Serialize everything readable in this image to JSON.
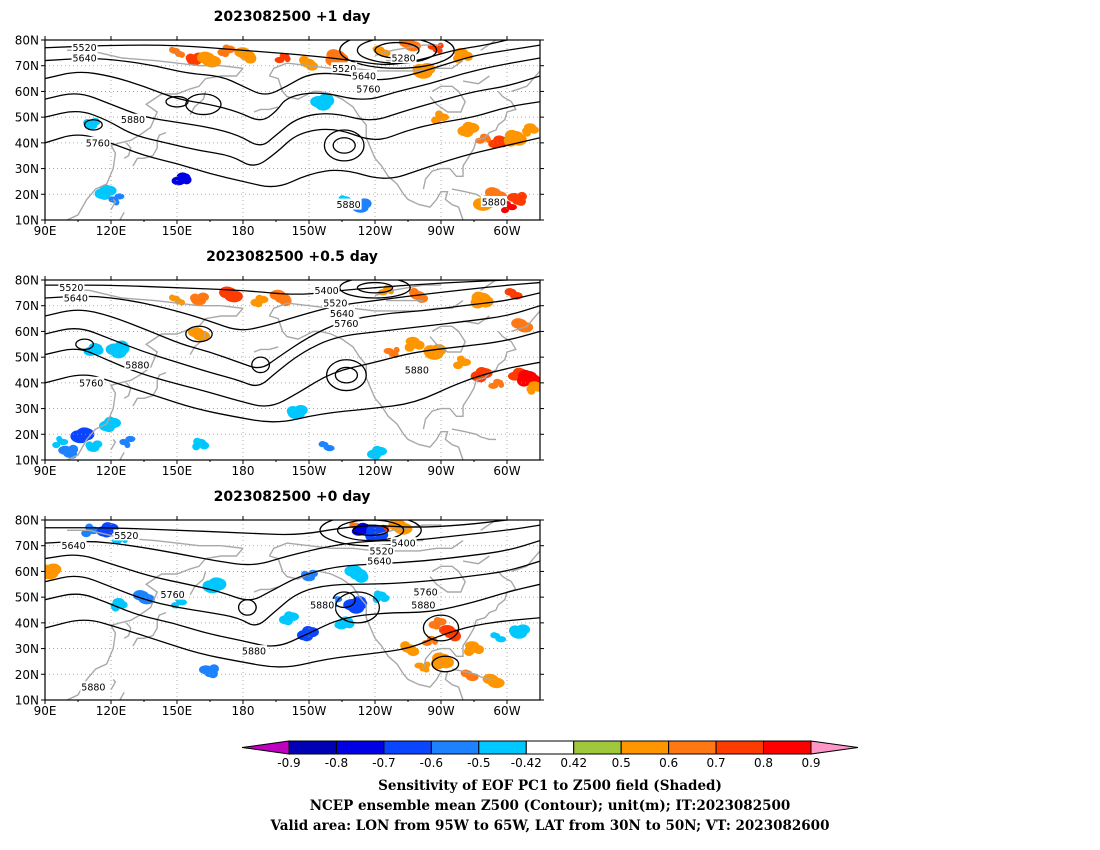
{
  "panels": [
    {
      "id": "p1",
      "title": "2023082500  +1 day",
      "contour_labels": [
        "5520",
        "5640",
        "5520",
        "5640",
        "5760",
        "5280",
        "5880",
        "5760",
        "5880",
        "5880"
      ],
      "shading": [
        {
          "lon": 150,
          "lat": 75,
          "v": 0.6
        },
        {
          "lon": 158,
          "lat": 73,
          "v": 0.7
        },
        {
          "lon": 165,
          "lat": 72,
          "v": 0.5
        },
        {
          "lon": 172,
          "lat": 76,
          "v": 0.6
        },
        {
          "lon": 182,
          "lat": 74,
          "v": 0.5
        },
        {
          "lon": 198,
          "lat": 73,
          "v": 0.7
        },
        {
          "lon": 210,
          "lat": 71,
          "v": 0.5
        },
        {
          "lon": 222,
          "lat": 73,
          "v": 0.6
        },
        {
          "lon": 243,
          "lat": 76,
          "v": 0.5
        },
        {
          "lon": 255,
          "lat": 78,
          "v": 0.6
        },
        {
          "lon": 268,
          "lat": 77,
          "v": 0.7
        },
        {
          "lon": 280,
          "lat": 74,
          "v": 0.5
        },
        {
          "lon": 262,
          "lat": 68,
          "v": 0.5
        },
        {
          "lon": 270,
          "lat": 50,
          "v": 0.5
        },
        {
          "lon": 282,
          "lat": 45,
          "v": 0.5
        },
        {
          "lon": 290,
          "lat": 42,
          "v": 0.6
        },
        {
          "lon": 296,
          "lat": 40,
          "v": 0.7
        },
        {
          "lon": 304,
          "lat": 42,
          "v": 0.5
        },
        {
          "lon": 310,
          "lat": 45,
          "v": 0.5
        },
        {
          "lon": 295,
          "lat": 20,
          "v": 0.6
        },
        {
          "lon": 300,
          "lat": 15,
          "v": 0.8
        },
        {
          "lon": 305,
          "lat": 18,
          "v": 0.7
        },
        {
          "lon": 290,
          "lat": 17,
          "v": 0.5
        },
        {
          "lon": 111,
          "lat": 47,
          "v": -0.5
        },
        {
          "lon": 118,
          "lat": 21,
          "v": -0.5
        },
        {
          "lon": 122,
          "lat": 18,
          "v": -0.6
        },
        {
          "lon": 153,
          "lat": 26,
          "v": -0.8
        },
        {
          "lon": 216,
          "lat": 56,
          "v": -0.5
        },
        {
          "lon": 227,
          "lat": 17,
          "v": -0.5
        },
        {
          "lon": 233,
          "lat": 16,
          "v": -0.6
        }
      ]
    },
    {
      "id": "p2",
      "title": "2023082500  +0.5 day",
      "contour_labels": [
        "5520",
        "5640",
        "5400",
        "5520",
        "5640",
        "5760",
        "5880",
        "5760",
        "5880"
      ],
      "shading": [
        {
          "lon": 150,
          "lat": 72,
          "v": 0.5
        },
        {
          "lon": 160,
          "lat": 73,
          "v": 0.6
        },
        {
          "lon": 175,
          "lat": 74,
          "v": 0.7
        },
        {
          "lon": 187,
          "lat": 72,
          "v": 0.5
        },
        {
          "lon": 198,
          "lat": 73,
          "v": 0.6
        },
        {
          "lon": 245,
          "lat": 76,
          "v": 0.5
        },
        {
          "lon": 260,
          "lat": 74,
          "v": 0.6
        },
        {
          "lon": 288,
          "lat": 72,
          "v": 0.5
        },
        {
          "lon": 303,
          "lat": 75,
          "v": 0.7
        },
        {
          "lon": 306,
          "lat": 62,
          "v": 0.6
        },
        {
          "lon": 248,
          "lat": 52,
          "v": 0.6
        },
        {
          "lon": 258,
          "lat": 55,
          "v": 0.5
        },
        {
          "lon": 267,
          "lat": 52,
          "v": 0.5
        },
        {
          "lon": 280,
          "lat": 48,
          "v": 0.5
        },
        {
          "lon": 288,
          "lat": 43,
          "v": 0.7
        },
        {
          "lon": 296,
          "lat": 40,
          "v": 0.6
        },
        {
          "lon": 305,
          "lat": 43,
          "v": 0.7
        },
        {
          "lon": 310,
          "lat": 42,
          "v": 0.8
        },
        {
          "lon": 312,
          "lat": 38,
          "v": 0.5
        },
        {
          "lon": 160,
          "lat": 59,
          "v": 0.5
        },
        {
          "lon": 96,
          "lat": 17,
          "v": -0.5
        },
        {
          "lon": 101,
          "lat": 13,
          "v": -0.6
        },
        {
          "lon": 107,
          "lat": 20,
          "v": -0.7
        },
        {
          "lon": 112,
          "lat": 15,
          "v": -0.5
        },
        {
          "lon": 120,
          "lat": 24,
          "v": -0.5
        },
        {
          "lon": 127,
          "lat": 17,
          "v": -0.6
        },
        {
          "lon": 113,
          "lat": 53,
          "v": -0.5
        },
        {
          "lon": 123,
          "lat": 53,
          "v": -0.5
        },
        {
          "lon": 161,
          "lat": 16,
          "v": -0.5
        },
        {
          "lon": 204,
          "lat": 29,
          "v": -0.5
        },
        {
          "lon": 218,
          "lat": 15,
          "v": -0.6
        },
        {
          "lon": 240,
          "lat": 13,
          "v": -0.5
        }
      ]
    },
    {
      "id": "p3",
      "title": "2023082500  +0 day",
      "contour_labels": [
        "5520",
        "5640",
        "5640",
        "5520",
        "5400",
        "5760",
        "5880",
        "5760",
        "5880",
        "5880",
        "5880"
      ],
      "shading": [
        {
          "lon": 232,
          "lat": 77,
          "v": 0.6
        },
        {
          "lon": 242,
          "lat": 76,
          "v": 0.7
        },
        {
          "lon": 252,
          "lat": 77,
          "v": 0.5
        },
        {
          "lon": 268,
          "lat": 40,
          "v": 0.6
        },
        {
          "lon": 275,
          "lat": 36,
          "v": 0.7
        },
        {
          "lon": 265,
          "lat": 33,
          "v": 0.6
        },
        {
          "lon": 256,
          "lat": 30,
          "v": 0.5
        },
        {
          "lon": 270,
          "lat": 25,
          "v": 0.5
        },
        {
          "lon": 283,
          "lat": 20,
          "v": 0.6
        },
        {
          "lon": 293,
          "lat": 17,
          "v": 0.5
        },
        {
          "lon": 262,
          "lat": 23,
          "v": 0.5
        },
        {
          "lon": 285,
          "lat": 30,
          "v": 0.5
        },
        {
          "lon": 92,
          "lat": 60,
          "v": 0.5
        },
        {
          "lon": 111,
          "lat": 76,
          "v": -0.6
        },
        {
          "lon": 118,
          "lat": 76,
          "v": -0.7
        },
        {
          "lon": 125,
          "lat": 73,
          "v": -0.5
        },
        {
          "lon": 234,
          "lat": 76,
          "v": -0.8
        },
        {
          "lon": 241,
          "lat": 75,
          "v": -0.7
        },
        {
          "lon": 123,
          "lat": 47,
          "v": -0.5
        },
        {
          "lon": 135,
          "lat": 50,
          "v": -0.6
        },
        {
          "lon": 150,
          "lat": 48,
          "v": -0.5
        },
        {
          "lon": 165,
          "lat": 21,
          "v": -0.6
        },
        {
          "lon": 167,
          "lat": 55,
          "v": -0.5
        },
        {
          "lon": 210,
          "lat": 58,
          "v": -0.6
        },
        {
          "lon": 210,
          "lat": 36,
          "v": -0.7
        },
        {
          "lon": 221,
          "lat": 48,
          "v": -0.6
        },
        {
          "lon": 227,
          "lat": 40,
          "v": -0.5
        },
        {
          "lon": 231,
          "lat": 47,
          "v": -0.7
        },
        {
          "lon": 243,
          "lat": 50,
          "v": -0.5
        },
        {
          "lon": 305,
          "lat": 37,
          "v": -0.5
        },
        {
          "lon": 296,
          "lat": 34,
          "v": -0.5
        },
        {
          "lon": 200,
          "lat": 42,
          "v": -0.5
        },
        {
          "lon": 232,
          "lat": 59,
          "v": -0.5
        }
      ]
    }
  ],
  "axes": {
    "lon_labels": [
      "90E",
      "120E",
      "150E",
      "180",
      "150W",
      "120W",
      "90W",
      "60W"
    ],
    "lat_labels": [
      "80N",
      "70N",
      "60N",
      "50N",
      "40N",
      "30N",
      "20N",
      "10N"
    ]
  },
  "colorbar": {
    "levels": [
      "-0.9",
      "-0.8",
      "-0.7",
      "-0.6",
      "-0.5",
      "-0.42",
      "0.42",
      "0.5",
      "0.6",
      "0.7",
      "0.8",
      "0.9"
    ],
    "colors": [
      "#c000c0",
      "#0000b4",
      "#0000e6",
      "#0a46ff",
      "#1e82ff",
      "#00c8ff",
      "#ffffff",
      "#a0c83c",
      "#ff9600",
      "#ff7814",
      "#ff3c00",
      "#ff0000",
      "#ff96c8"
    ]
  },
  "caption": {
    "line1": "Sensitivity of EOF PC1 to Z500 field (Shaded)",
    "line2": "NCEP ensemble mean Z500 (Contour); unit(m); IT:2023082500",
    "line3": "Valid area: LON from 95W to 65W, LAT from 30N to 50N; VT: 2023082600"
  }
}
